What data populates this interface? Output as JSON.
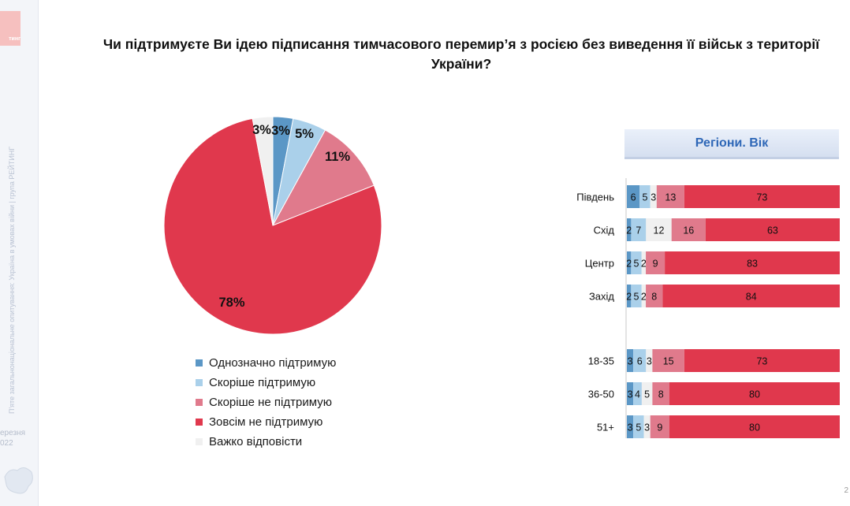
{
  "title": "Чи підтримуєте Ви ідею підписання тимчасового перемир’я з росією без виведення її військ з території України?",
  "sidebar": {
    "logo_text": "тинг",
    "caption": "П'яте загальнонаціональне опитування: Україна в умовах війни | група РЕЙТИНГ",
    "date_line1": "ерезня",
    "date_line2": "022"
  },
  "page_number": "2",
  "colors": {
    "definitely_support": "#5b97c6",
    "rather_support": "#aad0ea",
    "rather_not_support": "#e07a8c",
    "not_support_at_all": "#e0384d",
    "hard_to_say": "#f0f0f0"
  },
  "chart_data": [
    {
      "type": "pie",
      "title": "",
      "slices": [
        {
          "name": "Однозначно підтримую",
          "value": 3,
          "label": "3%",
          "color": "#5b97c6"
        },
        {
          "name": "Скоріше підтримую",
          "value": 5,
          "label": "5%",
          "color": "#aad0ea"
        },
        {
          "name": "Скоріше не підтримую",
          "value": 11,
          "label": "11%",
          "color": "#e07a8c"
        },
        {
          "name": "Зовсім не підтримую",
          "value": 78,
          "label": "78%",
          "color": "#e0384d"
        },
        {
          "name": "Важко відповісти",
          "value": 3,
          "label": "3%",
          "color": "#f0f0f0"
        }
      ],
      "legend": [
        "Однозначно підтримую",
        "Скоріше підтримую",
        "Скоріше не підтримую",
        "Зовсім не підтримую",
        "Важко відповісти"
      ],
      "legend_position": "bottom"
    },
    {
      "type": "bar",
      "orientation": "horizontal",
      "stacked": true,
      "title": "Регіони. Вік",
      "series_order": [
        "Однозначно підтримую",
        "Скоріше підтримую",
        "Важко відповісти",
        "Скоріше не підтримую",
        "Зовсім не підтримую"
      ],
      "series_colors": [
        "#5b97c6",
        "#aad0ea",
        "#f0f0f0",
        "#e07a8c",
        "#e0384d"
      ],
      "rows": [
        {
          "label": "Південь",
          "values": [
            6,
            5,
            3,
            13,
            73
          ]
        },
        {
          "label": "Схід",
          "values": [
            2,
            7,
            12,
            16,
            63
          ]
        },
        {
          "label": "Центр",
          "values": [
            2,
            5,
            2,
            9,
            83
          ]
        },
        {
          "label": "Захід",
          "values": [
            2,
            5,
            2,
            8,
            84
          ]
        },
        {
          "label": "18-35",
          "values": [
            3,
            6,
            3,
            15,
            73
          ]
        },
        {
          "label": "36-50",
          "values": [
            3,
            4,
            5,
            8,
            80
          ]
        },
        {
          "label": "51+",
          "values": [
            3,
            5,
            3,
            9,
            80
          ]
        }
      ]
    }
  ]
}
